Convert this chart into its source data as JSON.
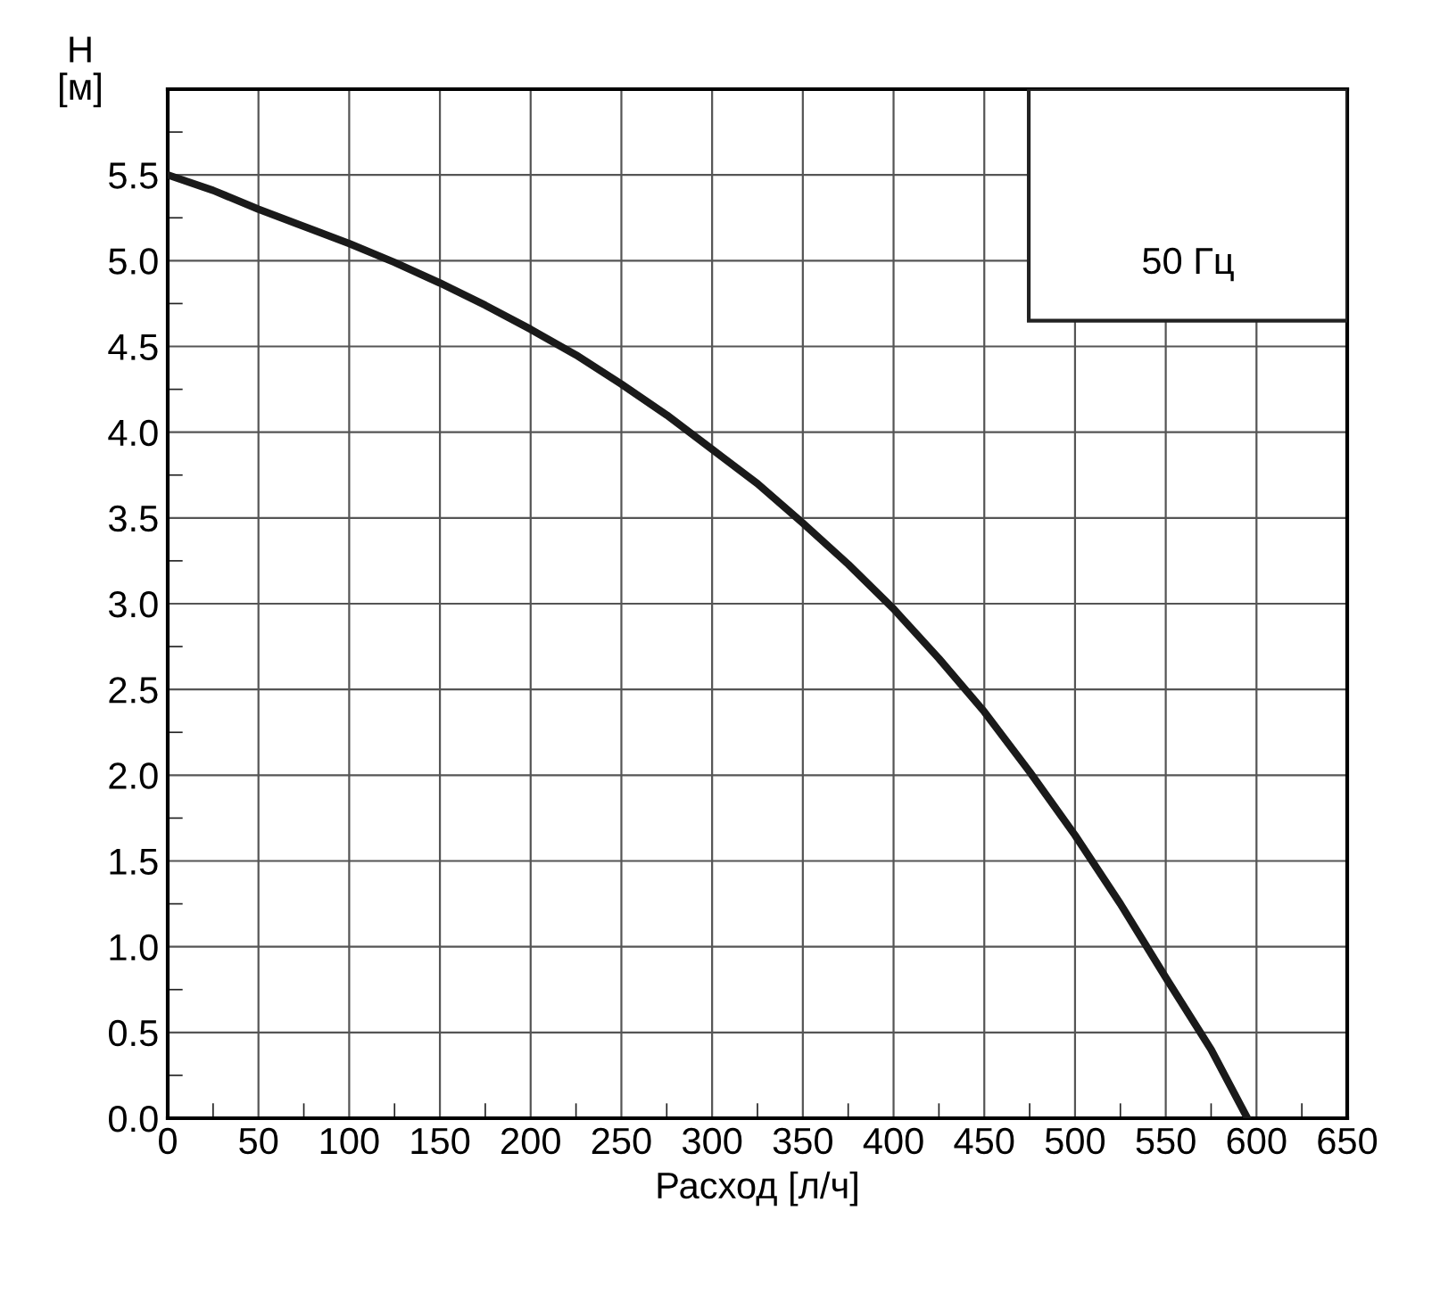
{
  "chart_data": {
    "type": "line",
    "xlabel": "Расход [л/ч]",
    "ylabel": "H\n[м]",
    "annotations": [
      "50 Гц"
    ],
    "series": [
      {
        "color": "#1a1a1a",
        "x": [
          0,
          25,
          50,
          75,
          100,
          125,
          150,
          175,
          200,
          225,
          250,
          275,
          300,
          325,
          350,
          375,
          400,
          425,
          450,
          475,
          500,
          525,
          550,
          575,
          595
        ],
        "values": [
          5.5,
          5.41,
          5.3,
          5.2,
          5.1,
          4.99,
          4.87,
          4.74,
          4.6,
          4.45,
          4.28,
          4.1,
          3.9,
          3.7,
          3.47,
          3.23,
          2.97,
          2.68,
          2.37,
          2.02,
          1.65,
          1.25,
          0.82,
          0.4,
          0.0
        ]
      }
    ],
    "xlim": [
      0,
      650
    ],
    "xticks": [
      0,
      50,
      100,
      150,
      200,
      250,
      300,
      350,
      400,
      450,
      500,
      550,
      600,
      650
    ],
    "ylim": [
      0,
      6.0
    ],
    "yticks": [
      {
        "value": 0,
        "label": "0.0"
      },
      0.5,
      {
        "value": 1,
        "label": "1.0"
      },
      1.5,
      {
        "value": 2,
        "label": "2.0"
      },
      2.5,
      {
        "value": 3,
        "label": "3.0"
      },
      3.5,
      {
        "value": 4,
        "label": "4.0"
      },
      4.5,
      {
        "value": 5,
        "label": "5.0"
      },
      5.5,
      {
        "value": 6.0,
        "label": null
      }
    ],
    "grid": true,
    "marker": "none",
    "line_style": "solid"
  }
}
